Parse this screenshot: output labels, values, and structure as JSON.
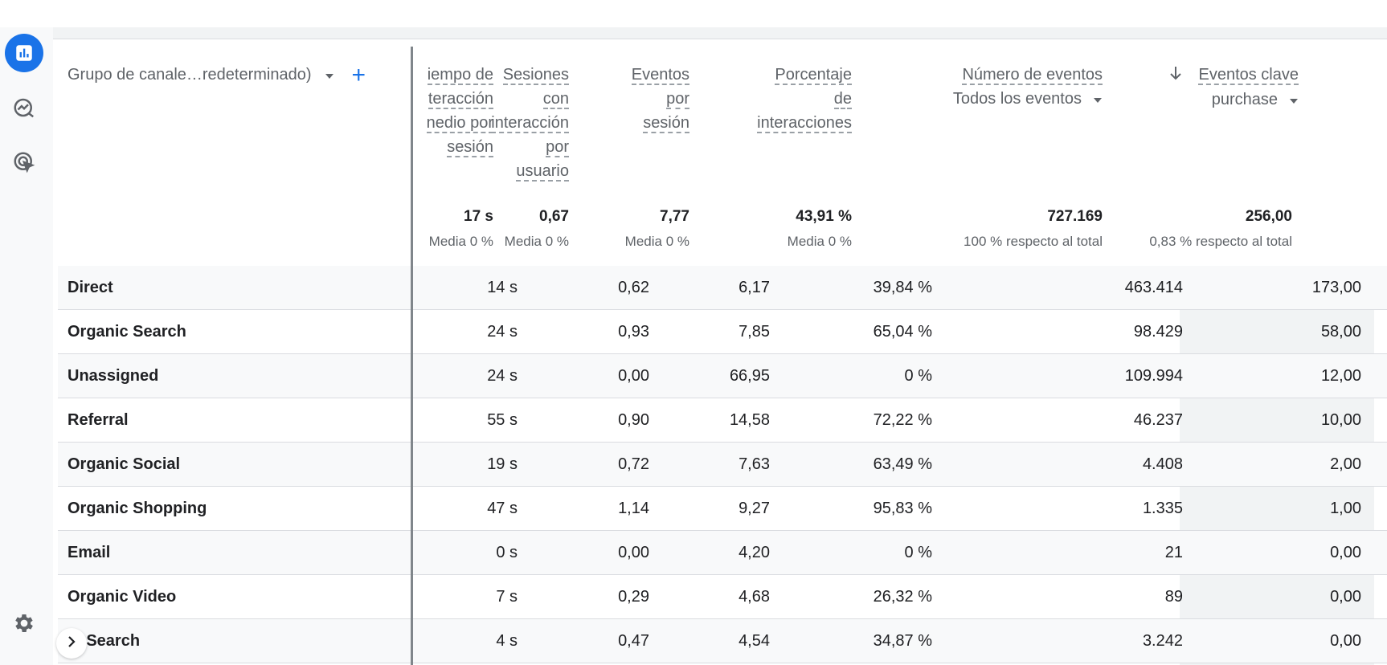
{
  "rail": {
    "items": [
      {
        "name": "reports-icon"
      },
      {
        "name": "explore-icon"
      },
      {
        "name": "advertising-icon"
      }
    ]
  },
  "dimension": {
    "label": "Grupo de canale…redeterminado)",
    "add_symbol": "+"
  },
  "columns": [
    {
      "lines": [
        "iempo de",
        "teracción",
        "nedio por",
        "sesión"
      ],
      "total": "17 s",
      "sub": "Media 0 %"
    },
    {
      "lines": [
        "Sesiones",
        "con",
        "interacción",
        "por",
        "usuario"
      ],
      "total": "0,67",
      "sub": "Media 0 %"
    },
    {
      "lines": [
        "Eventos",
        "por",
        "sesión"
      ],
      "total": "7,77",
      "sub": "Media 0 %"
    },
    {
      "lines": [
        "Porcentaje",
        "de",
        "interacciones"
      ],
      "total": "43,91 %",
      "sub": "Media 0 %"
    },
    {
      "lines": [
        "Número de eventos"
      ],
      "selector": "Todos los eventos",
      "total": "727.169",
      "sub": "100 % respecto al total"
    },
    {
      "lines": [
        "Eventos clave"
      ],
      "selector": "purchase",
      "total": "256,00",
      "sub": "0,83 % respecto al total"
    }
  ],
  "rows": [
    {
      "name": "Direct",
      "values": [
        "14 s",
        "0,62",
        "6,17",
        "39,84 %",
        "463.414",
        "173,00"
      ]
    },
    {
      "name": "Organic Search",
      "values": [
        "24 s",
        "0,93",
        "7,85",
        "65,04 %",
        "98.429",
        "58,00"
      ]
    },
    {
      "name": "Unassigned",
      "values": [
        "24 s",
        "0,00",
        "66,95",
        "0 %",
        "109.994",
        "12,00"
      ]
    },
    {
      "name": "Referral",
      "values": [
        "55 s",
        "0,90",
        "14,58",
        "72,22 %",
        "46.237",
        "10,00"
      ]
    },
    {
      "name": "Organic Social",
      "values": [
        "19 s",
        "0,72",
        "7,63",
        "63,49 %",
        "4.408",
        "2,00"
      ]
    },
    {
      "name": "Organic Shopping",
      "values": [
        "47 s",
        "1,14",
        "9,27",
        "95,83 %",
        "1.335",
        "1,00"
      ]
    },
    {
      "name": "Email",
      "values": [
        "0 s",
        "0,00",
        "4,20",
        "0 %",
        "21",
        "0,00"
      ]
    },
    {
      "name": "Organic Video",
      "values": [
        "7 s",
        "0,29",
        "4,68",
        "26,32 %",
        "89",
        "0,00"
      ]
    },
    {
      "name": "id Search",
      "values": [
        "4 s",
        "0,47",
        "4,54",
        "34,87 %",
        "3.242",
        "0,00"
      ]
    }
  ],
  "colors": {
    "accent": "#1a73e8",
    "rail_bg": "#f8f9fa",
    "sorted_col_bg": "#f1f3f4"
  }
}
